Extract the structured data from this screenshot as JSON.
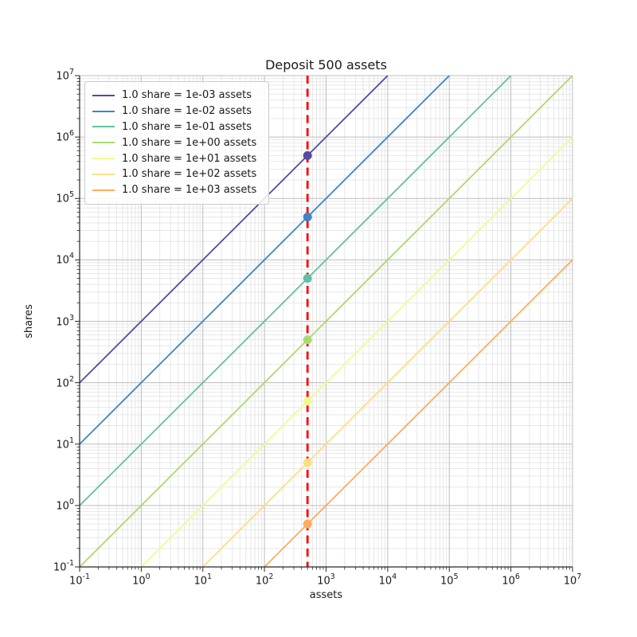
{
  "chart_data": {
    "type": "line",
    "title": "Deposit 500 assets",
    "xlabel": "assets",
    "ylabel": "shares",
    "xscale": "log",
    "yscale": "log",
    "xlim": [
      0.1,
      10000000
    ],
    "ylim": [
      0.1,
      10000000
    ],
    "x_tick_exponents": [
      -1,
      0,
      1,
      2,
      3,
      4,
      5,
      6,
      7
    ],
    "y_tick_exponents": [
      -1,
      0,
      1,
      2,
      3,
      4,
      5,
      6,
      7
    ],
    "grid": {
      "major": true,
      "minor": true,
      "major_color": "#bdbdbd",
      "minor_color": "#e4e4e4"
    },
    "legend_position": "upper-left",
    "deposit": {
      "assets": 500,
      "vline_color": "#ff0000",
      "vline_style": "dashed"
    },
    "series": [
      {
        "label": "1.0 share = 1e-03 assets",
        "color": "#5449a3",
        "assets_per_share": 0.001,
        "point": {
          "x": 500,
          "y": 500000
        }
      },
      {
        "label": "1.0 share = 1e-02 assets",
        "color": "#3d85c4",
        "assets_per_share": 0.01,
        "point": {
          "x": 500,
          "y": 50000
        }
      },
      {
        "label": "1.0 share = 1e-01 assets",
        "color": "#62c0a2",
        "assets_per_share": 0.1,
        "point": {
          "x": 500,
          "y": 5000
        }
      },
      {
        "label": "1.0 share = 1e+00 assets",
        "color": "#a9da6e",
        "assets_per_share": 1,
        "point": {
          "x": 500,
          "y": 500
        }
      },
      {
        "label": "1.0 share = 1e+01 assets",
        "color": "#f3f991",
        "assets_per_share": 10,
        "point": {
          "x": 500,
          "y": 50
        }
      },
      {
        "label": "1.0 share = 1e+02 assets",
        "color": "#fede83",
        "assets_per_share": 100,
        "point": {
          "x": 500,
          "y": 5
        }
      },
      {
        "label": "1.0 share = 1e+03 assets",
        "color": "#fcad5e",
        "assets_per_share": 1000,
        "point": {
          "x": 500,
          "y": 0.5
        }
      }
    ],
    "axis_color": "#262626"
  }
}
